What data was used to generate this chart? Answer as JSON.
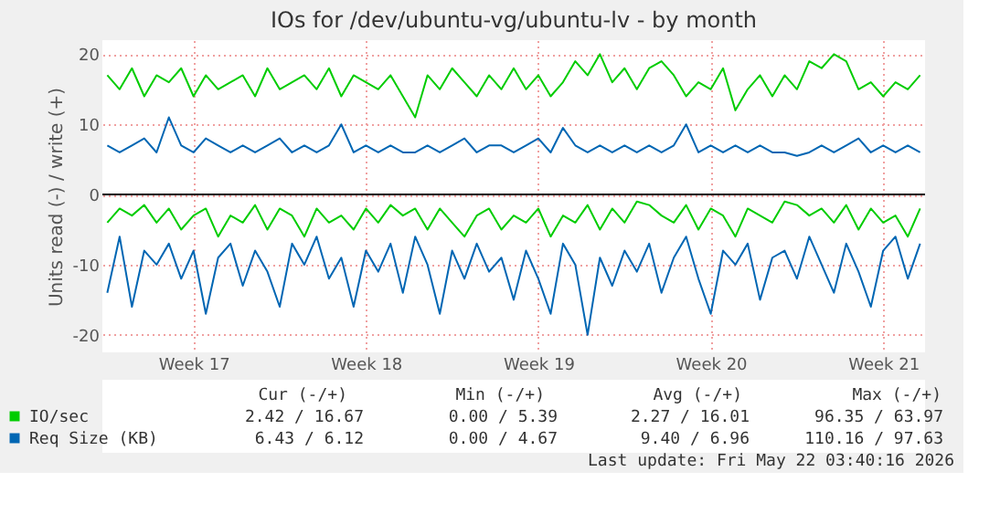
{
  "chart_data": {
    "type": "line",
    "title": "IOs for /dev/ubuntu-vg/ubuntu-lv - by month",
    "ylabel": "Units read (-) / write (+)",
    "categories": [
      null,
      null,
      null,
      null,
      null,
      null,
      null,
      "Week 17",
      null,
      null,
      null,
      null,
      null,
      null,
      null,
      null,
      null,
      null,
      null,
      null,
      null,
      "Week 18",
      null,
      null,
      null,
      null,
      null,
      null,
      null,
      null,
      null,
      null,
      null,
      null,
      null,
      "Week 19",
      null,
      null,
      null,
      null,
      null,
      null,
      null,
      null,
      null,
      null,
      null,
      null,
      null,
      "Week 20",
      null,
      null,
      null,
      null,
      null,
      null,
      null,
      null,
      null,
      null,
      null,
      null,
      null,
      "Week 21",
      null,
      null,
      null
    ],
    "ylim": [
      -22.5,
      22
    ],
    "yticks": [
      -20,
      -10,
      0,
      10,
      20
    ],
    "series": [
      {
        "name": "IO/sec",
        "color": "#00cc00",
        "values": [
          17,
          15,
          18,
          14,
          17,
          16,
          18,
          14,
          17,
          15,
          16,
          17,
          14,
          18,
          15,
          16,
          17,
          15,
          18,
          14,
          17,
          16,
          15,
          17,
          14,
          11,
          17,
          15,
          18,
          16,
          14,
          17,
          15,
          18,
          15,
          17,
          14,
          16,
          19,
          17,
          20,
          16,
          18,
          15,
          18,
          19,
          17,
          14,
          16,
          15,
          18,
          12,
          15,
          17,
          14,
          17,
          15,
          19,
          18,
          20,
          19,
          15,
          16,
          14,
          16,
          15,
          17
        ]
      },
      {
        "color": "#00cc00",
        "values": [
          -4,
          -2,
          -3,
          -1.5,
          -4,
          -2,
          -5,
          -3,
          -2,
          -6,
          -3,
          -4,
          -1.5,
          -5,
          -2,
          -3,
          -6,
          -2,
          -4,
          -3,
          -5,
          -2,
          -4,
          -1.5,
          -3,
          -2,
          -5,
          -2,
          -4,
          -6,
          -3,
          -2,
          -5,
          -3,
          -4,
          -2,
          -6,
          -3,
          -4,
          -1.5,
          -5,
          -2,
          -4,
          -1,
          -1.5,
          -3,
          -4,
          -1.5,
          -5,
          -2,
          -3,
          -6,
          -2,
          -3,
          -4,
          -1,
          -1.5,
          -3,
          -2,
          -4,
          -1.5,
          -5,
          -2,
          -4,
          -3,
          -6,
          -2
        ]
      },
      {
        "name": "Req Size (KB)",
        "color": "#0066b3",
        "values": [
          7,
          6,
          7,
          8,
          6,
          11,
          7,
          6,
          8,
          7,
          6,
          7,
          6,
          7,
          8,
          6,
          7,
          6,
          7,
          10,
          6,
          7,
          6,
          7,
          6,
          6,
          7,
          6,
          7,
          8,
          6,
          7,
          7,
          6,
          7,
          8,
          6,
          9.5,
          7,
          6,
          7,
          6,
          7,
          6,
          7,
          6,
          7,
          10,
          6,
          7,
          6,
          7,
          6,
          7,
          6,
          6,
          5.5,
          6,
          7,
          6,
          7,
          8,
          6,
          7,
          6,
          7,
          6
        ]
      },
      {
        "color": "#0066b3",
        "values": [
          -14,
          -6,
          -16,
          -8,
          -10,
          -7,
          -12,
          -8,
          -17,
          -9,
          -7,
          -13,
          -8,
          -11,
          -16,
          -7,
          -10,
          -6,
          -12,
          -9,
          -16,
          -8,
          -11,
          -7,
          -14,
          -6,
          -10,
          -17,
          -8,
          -12,
          -7,
          -11,
          -9,
          -15,
          -8,
          -12,
          -17,
          -7,
          -10,
          -20,
          -9,
          -13,
          -8,
          -11,
          -7,
          -14,
          -9,
          -6,
          -12,
          -17,
          -8,
          -10,
          -7,
          -15,
          -9,
          -8,
          -12,
          -6,
          -10,
          -14,
          -7,
          -11,
          -16,
          -8,
          -6,
          -12,
          -7
        ]
      }
    ],
    "ref_lines": [
      {
        "axis": "y",
        "value": 0,
        "color": "#000000"
      }
    ],
    "grid": true,
    "legend": "bottom",
    "marker": "none",
    "line_style": "solid",
    "annotations": [
      "Cur (-/+)",
      "Min (-/+)",
      "Avg (-/+)",
      "Max (-/+)",
      "2.42 / 16.67",
      "0.00 /  5.39",
      "2.27 / 16.01",
      "96.35 / 63.97",
      "6.43 /  6.12",
      "0.00 /  4.67",
      "9.40 /  6.96",
      "110.16 / 97.63",
      "Last update: Fri May 22 03:40:16 2026"
    ]
  }
}
